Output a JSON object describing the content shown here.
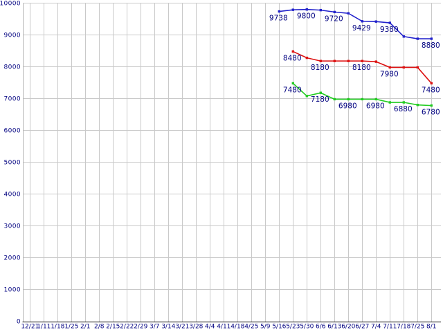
{
  "chart_data": {
    "type": "line",
    "title": "",
    "xlabel": "",
    "ylabel": "",
    "grid": true,
    "legend": "none",
    "background_color": "#ffffff",
    "grid_color": "#c9c9c9",
    "axis_color": "#000000",
    "text_color": "#000080",
    "ylim": [
      0,
      10000
    ],
    "y_axis": {
      "min": 0,
      "max": 10000,
      "step": 1000,
      "tick_labels": [
        "0",
        "1000",
        "2000",
        "3000",
        "4000",
        "5000",
        "6000",
        "7000",
        "8000",
        "9000",
        "10000"
      ]
    },
    "x_categories": [
      "12/21",
      "1/11",
      "1/18",
      "1/25",
      "2/1",
      "2/8",
      "2/15",
      "2/22",
      "2/29",
      "3/7",
      "3/14",
      "3/21",
      "3/28",
      "4/4",
      "4/11",
      "4/18",
      "4/25",
      "5/9",
      "5/16",
      "5/23",
      "5/30",
      "6/6",
      "6/13",
      "6/20",
      "6/27",
      "7/4",
      "7/11",
      "7/18",
      "7/25",
      "8/1"
    ],
    "series": [
      {
        "name": "series-blue",
        "color": "#2222cc",
        "start_index": 18,
        "values": [
          9738,
          9790,
          9800,
          9780,
          9720,
          9680,
          9429,
          9420,
          9380,
          8950,
          8880,
          8880
        ],
        "point_labels": [
          "9738",
          "",
          "9800",
          "",
          "9720",
          "",
          "9429",
          "",
          "9380",
          "",
          "",
          "8880"
        ]
      },
      {
        "name": "series-red",
        "color": "#dd1111",
        "start_index": 19,
        "values": [
          8480,
          8280,
          8180,
          8180,
          8180,
          8180,
          8160,
          7980,
          7980,
          7980,
          7480
        ],
        "point_labels": [
          "8480",
          "",
          "8180",
          "",
          "",
          "8180",
          "",
          "7980",
          "",
          "",
          "7480"
        ]
      },
      {
        "name": "series-green",
        "color": "#22cc22",
        "start_index": 19,
        "values": [
          7480,
          7080,
          7180,
          6980,
          6980,
          6980,
          6980,
          6880,
          6880,
          6800,
          6780
        ],
        "point_labels": [
          "7480",
          "",
          "7180",
          "",
          "6980",
          "",
          "6980",
          "",
          "6880",
          "",
          "6780"
        ]
      }
    ]
  }
}
